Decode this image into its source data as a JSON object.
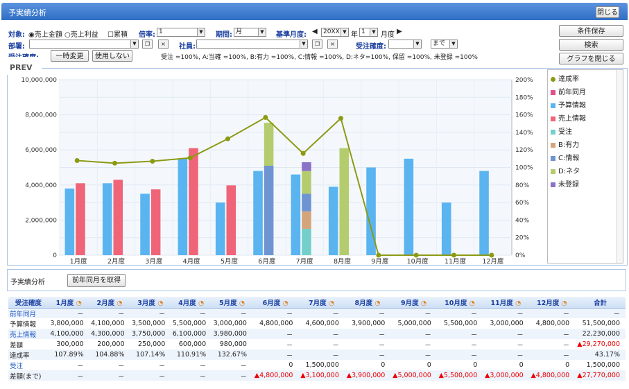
{
  "window": {
    "title": "予実績分析",
    "close_label": "閉じる"
  },
  "filters": {
    "target_label": "対象:",
    "radio1": "売上金額",
    "radio2": "売上利益",
    "cumulative": "累積",
    "rate_label": "倍率:",
    "rate_value": "1",
    "period_label": "期間:",
    "period_value": "月",
    "base_month_label": "基準月度:",
    "year_value": "20XX",
    "year_suffix": "年",
    "month_value": "1",
    "month_suffix": "月度",
    "dept_label": "部署:",
    "staff_label": "社員:",
    "order_certainty_label": "受注確度:",
    "until_value": "まで",
    "order_certainty_label2": "受注確度:",
    "temp_change": "一時変更",
    "not_use": "使用しない",
    "certainty_note": "受注 =100%, A:当確 =100%, B:有力 =100%, C:情報 =100%, D:ネタ=100%, 保留 =100%, 未登録 =100%"
  },
  "right_buttons": {
    "save": "条件保存",
    "search": "検索",
    "close_graph": "グラフを閉じる"
  },
  "prev_label": "PREV",
  "chart_data": {
    "type": "bar",
    "categories": [
      "1月度",
      "2月度",
      "3月度",
      "4月度",
      "5月度",
      "6月度",
      "7月度",
      "8月度",
      "9月度",
      "10月度",
      "11月度",
      "12月度"
    ],
    "ylim": [
      0,
      10000000
    ],
    "y2lim": [
      0,
      200
    ],
    "y_ticks": [
      "0",
      "2,000,000",
      "4,000,000",
      "6,000,000",
      "8,000,000",
      "10,000,000"
    ],
    "y2_ticks": [
      "0%",
      "20%",
      "40%",
      "60%",
      "80%",
      "100%",
      "120%",
      "140%",
      "160%",
      "180%",
      "200%"
    ],
    "series": [
      {
        "name": "予算情報",
        "color": "#5ab4f0",
        "values": [
          3800000,
          4100000,
          3500000,
          5500000,
          3000000,
          4800000,
          4600000,
          3900000,
          5000000,
          5500000,
          3000000,
          4800000
        ]
      },
      {
        "name": "売上情報",
        "color": "#f06478",
        "values": [
          4100000,
          4300000,
          3750000,
          6100000,
          3980000,
          null,
          null,
          null,
          null,
          null,
          null,
          null
        ]
      }
    ],
    "stack_series": [
      {
        "name": "受注",
        "color": "#74cfca",
        "values": [
          0,
          0,
          0,
          0,
          0,
          0,
          1500000,
          0,
          0,
          0,
          0,
          0
        ]
      },
      {
        "name": "B:有力",
        "color": "#d4a57b",
        "values": [
          0,
          0,
          0,
          0,
          0,
          0,
          1000000,
          0,
          0,
          0,
          0,
          0
        ]
      },
      {
        "name": "C:情報",
        "color": "#6f94d2",
        "values": [
          0,
          0,
          0,
          0,
          0,
          5100000,
          1000000,
          0,
          0,
          0,
          0,
          0
        ]
      },
      {
        "name": "D:ネタ",
        "color": "#b5cc6e",
        "values": [
          0,
          0,
          0,
          0,
          0,
          2450000,
          1300000,
          6100000,
          0,
          0,
          0,
          0
        ]
      },
      {
        "name": "未登録",
        "color": "#8a72c9",
        "values": [
          0,
          0,
          0,
          0,
          0,
          0,
          500000,
          0,
          0,
          0,
          0,
          0
        ]
      }
    ],
    "line": {
      "name": "達成率",
      "color": "#8c9a12",
      "values": [
        107.89,
        104.88,
        107.14,
        110.91,
        132.67,
        157,
        116,
        156,
        0,
        0,
        0,
        0
      ]
    },
    "legend": [
      {
        "name": "達成率",
        "color": "#8c9a12",
        "shape": "dot"
      },
      {
        "name": "前年同月",
        "color": "#e0508a"
      },
      {
        "name": "予算情報",
        "color": "#5ab4f0"
      },
      {
        "name": "売上情報",
        "color": "#f06478"
      },
      {
        "name": "受注",
        "color": "#74cfca"
      },
      {
        "name": "B:有力",
        "color": "#d4a57b"
      },
      {
        "name": "C:情報",
        "color": "#6f94d2"
      },
      {
        "name": "D:ネタ",
        "color": "#b5cc6e"
      },
      {
        "name": "未登録",
        "color": "#8a72c9"
      }
    ]
  },
  "section2": {
    "title": "予実績分析",
    "button": "前年同月を取得"
  },
  "table": {
    "headers": [
      "受注確度",
      "1月度",
      "2月度",
      "3月度",
      "4月度",
      "5月度",
      "6月度",
      "7月度",
      "8月度",
      "9月度",
      "10月度",
      "11月度",
      "12月度",
      "合計"
    ],
    "rows": [
      {
        "label": "前年同月",
        "link": true,
        "cells": [
          "－",
          "－",
          "－",
          "－",
          "－",
          "－",
          "－",
          "－",
          "－",
          "－",
          "－",
          "－",
          "－"
        ]
      },
      {
        "label": "予算情報",
        "link": false,
        "cells": [
          "3,800,000",
          "4,100,000",
          "3,500,000",
          "5,500,000",
          "3,000,000",
          "4,800,000",
          "4,600,000",
          "3,900,000",
          "5,000,000",
          "5,500,000",
          "3,000,000",
          "4,800,000",
          "51,500,000"
        ]
      },
      {
        "label": "売上情報",
        "link": true,
        "cells": [
          "4,100,000",
          "4,300,000",
          "3,750,000",
          "6,100,000",
          "3,980,000",
          "－",
          "－",
          "－",
          "－",
          "－",
          "－",
          "－",
          "22,230,000"
        ]
      },
      {
        "label": "差額",
        "link": false,
        "cells": [
          "300,000",
          "200,000",
          "250,000",
          "600,000",
          "980,000",
          "－",
          "－",
          "－",
          "－",
          "－",
          "－",
          "－",
          "▲29,270,000"
        ]
      },
      {
        "label": "達成率",
        "link": false,
        "cells": [
          "107.89%",
          "104.88%",
          "107.14%",
          "110.91%",
          "132.67%",
          "－",
          "－",
          "－",
          "－",
          "－",
          "－",
          "－",
          "43.17%"
        ]
      },
      {
        "label": "受注",
        "link": true,
        "cells": [
          "－",
          "－",
          "－",
          "－",
          "－",
          "0",
          "1,500,000",
          "0",
          "0",
          "0",
          "0",
          "0",
          "1,500,000"
        ]
      },
      {
        "label": "差額(まで)",
        "link": false,
        "cells": [
          "－",
          "－",
          "－",
          "－",
          "－",
          "▲4,800,000",
          "▲3,100,000",
          "▲3,900,000",
          "▲5,000,000",
          "▲5,500,000",
          "▲3,000,000",
          "▲4,800,000",
          "▲27,770,000"
        ]
      }
    ]
  }
}
